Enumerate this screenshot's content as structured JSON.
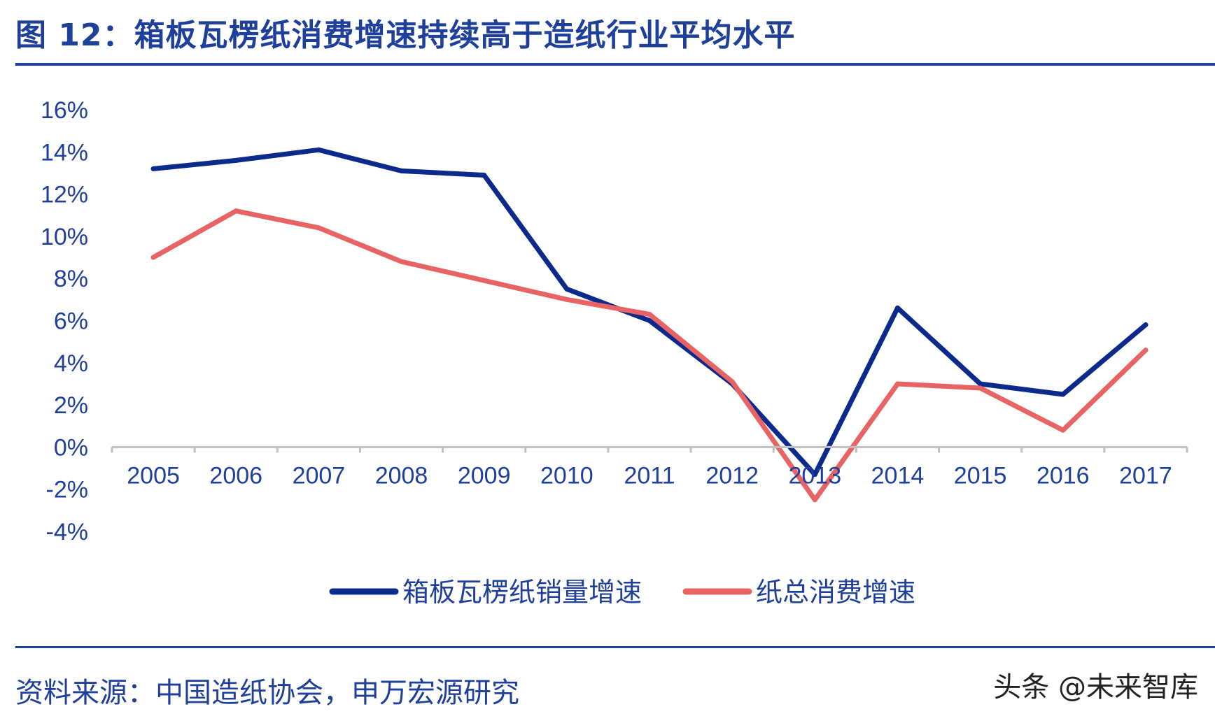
{
  "header": {
    "title": "图 12：箱板瓦楞纸消费增速持续高于造纸行业平均水平"
  },
  "footer": {
    "source": "资料来源：中国造纸协会，申万宏源研究",
    "watermark": "头条 @未来智库"
  },
  "chart_data": {
    "type": "line",
    "title": "",
    "xlabel": "",
    "ylabel": "",
    "categories": [
      "2005",
      "2006",
      "2007",
      "2008",
      "2009",
      "2010",
      "2011",
      "2012",
      "2013",
      "2014",
      "2015",
      "2016",
      "2017"
    ],
    "ylim": [
      -4,
      16
    ],
    "yticks": [
      -4,
      -2,
      0,
      2,
      4,
      6,
      8,
      10,
      12,
      14,
      16
    ],
    "ytick_labels": [
      "-4%",
      "-2%",
      "0%",
      "2%",
      "4%",
      "6%",
      "8%",
      "10%",
      "12%",
      "14%",
      "16%"
    ],
    "grid": false,
    "legend_position": "bottom",
    "series": [
      {
        "name": "箱板瓦楞纸销量增速",
        "color": "#0b2a8c",
        "values": [
          13.2,
          13.6,
          14.1,
          13.1,
          12.9,
          7.5,
          6.0,
          3.0,
          -1.3,
          6.6,
          3.0,
          2.5,
          5.8
        ]
      },
      {
        "name": "纸总消费增速",
        "color": "#e86464",
        "values": [
          9.0,
          11.2,
          10.4,
          8.8,
          7.9,
          7.0,
          6.3,
          3.1,
          -2.5,
          3.0,
          2.8,
          0.8,
          4.6
        ]
      }
    ]
  }
}
